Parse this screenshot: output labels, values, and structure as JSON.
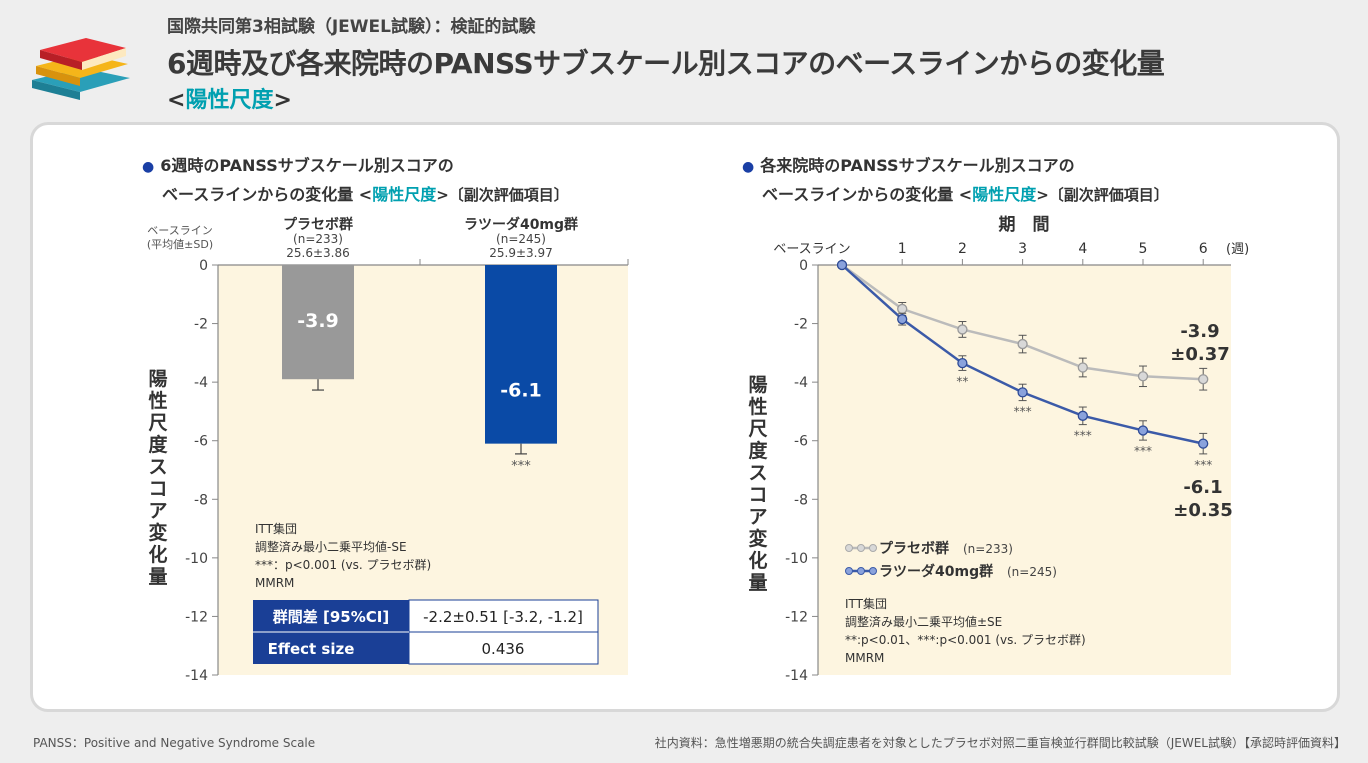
{
  "header": {
    "subtitle": "国際共同第3相試験（JEWEL試験）：検証的試験",
    "title": "6週時及び各来院時のPANSSサブスケール別スコアのベースラインからの変化量",
    "scale_open": "<",
    "scale_name": "陽性尺度",
    "scale_close": ">"
  },
  "left_chart": {
    "heading_line1": "6週時のPANSSサブスケール別スコアの",
    "heading_line2_pre": "ベースラインからの変化量 <",
    "heading_hl": "陽性尺度",
    "heading_line2_post": ">〔副次評価項目〕",
    "baseline_label1": "ベースライン",
    "baseline_label2": "(平均値±SD)",
    "ylabel": "陽性尺度スコア変化量",
    "groups": [
      {
        "name": "プラセボ群",
        "n": "(n=233)",
        "baseline": "25.6±3.86",
        "value": -3.9,
        "err": 0.37,
        "label": "-3.9",
        "color": "#999999",
        "sig": ""
      },
      {
        "name": "ラツーダ40mg群",
        "n": "(n=245)",
        "baseline": "25.9±3.97",
        "value": -6.1,
        "err": 0.35,
        "label": "-6.1",
        "color": "#0a4aa6",
        "sig": "***"
      }
    ],
    "notes": [
      "ITT集団",
      "調整済み最小二乗平均値-SE",
      "***：p<0.001 (vs. プラセボ群)",
      "MMRM"
    ],
    "table": {
      "row1_label": "群間差 [95%CI]",
      "row1_value": "-2.2±0.51 [-3.2, -1.2]",
      "row2_label": "Effect size",
      "row2_value": "0.436"
    }
  },
  "right_chart": {
    "heading_line1": "各来院時のPANSSサブスケール別スコアの",
    "heading_line2_pre": "ベースラインからの変化量 <",
    "heading_hl": "陽性尺度",
    "heading_line2_post": ">〔副次評価項目〕",
    "period_label": "期　間",
    "x_labels": [
      "ベースライン",
      "1",
      "2",
      "3",
      "4",
      "5",
      "6"
    ],
    "x_unit": "(週)",
    "ylabel": "陽性尺度スコア変化量",
    "legend": [
      {
        "name": "プラセボ群",
        "n": "(n=233)"
      },
      {
        "name": "ラツーダ40mg群",
        "n": "(n=245)"
      }
    ],
    "end_labels": {
      "placebo_value": "-3.9",
      "placebo_se": "±0.37",
      "lurasidone_value": "-6.1",
      "lurasidone_se": "±0.35"
    },
    "notes": [
      "ITT集団",
      "調整済み最小二乗平均値±SE",
      "**:p<0.01、***:p<0.001 (vs. プラセボ群)",
      "MMRM"
    ]
  },
  "chart_data": [
    {
      "type": "bar",
      "title": "6週時のPANSSサブスケール別スコアのベースラインからの変化量 <陽性尺度>",
      "categories": [
        "プラセボ群",
        "ラツーダ40mg群"
      ],
      "values": [
        -3.9,
        -6.1
      ],
      "errors": [
        0.37,
        0.35
      ],
      "ylabel": "陽性尺度スコア変化量",
      "ylim": [
        -14,
        0
      ],
      "yticks": [
        0,
        -2,
        -4,
        -6,
        -8,
        -10,
        -12,
        -14
      ]
    },
    {
      "type": "line",
      "title": "各来院時のPANSSサブスケール別スコアのベースラインからの変化量 <陽性尺度>",
      "x": [
        0,
        1,
        2,
        3,
        4,
        5,
        6
      ],
      "series": [
        {
          "name": "プラセボ群",
          "values": [
            0,
            -1.5,
            -2.2,
            -2.7,
            -3.5,
            -3.8,
            -3.9
          ],
          "errors": [
            0,
            0.22,
            0.27,
            0.3,
            0.32,
            0.35,
            0.37
          ],
          "sig": [
            "",
            "",
            "",
            "",
            "",
            "",
            ""
          ]
        },
        {
          "name": "ラツーダ40mg群",
          "values": [
            0,
            -1.85,
            -3.35,
            -4.35,
            -5.15,
            -5.65,
            -6.1
          ],
          "errors": [
            0,
            0.2,
            0.25,
            0.28,
            0.3,
            0.33,
            0.35
          ],
          "sig": [
            "",
            "",
            "**",
            "***",
            "***",
            "***",
            "***"
          ]
        }
      ],
      "ylabel": "陽性尺度スコア変化量",
      "ylim": [
        -14,
        0
      ],
      "yticks": [
        0,
        -2,
        -4,
        -6,
        -8,
        -10,
        -12,
        -14
      ]
    }
  ],
  "footer": {
    "left": "PANSS：Positive and Negative Syndrome Scale",
    "right": "社内資料：急性増悪期の統合失調症患者を対象としたプラセボ対照二重盲検並行群間比較試験（JEWEL試験）【承認時評価資料】"
  },
  "colors": {
    "placebo": "#999999",
    "lurasidone": "#0a4aa6",
    "bg_plot": "#fdf5e0",
    "accent": "#00a0b0",
    "table": "#1a3f96"
  }
}
